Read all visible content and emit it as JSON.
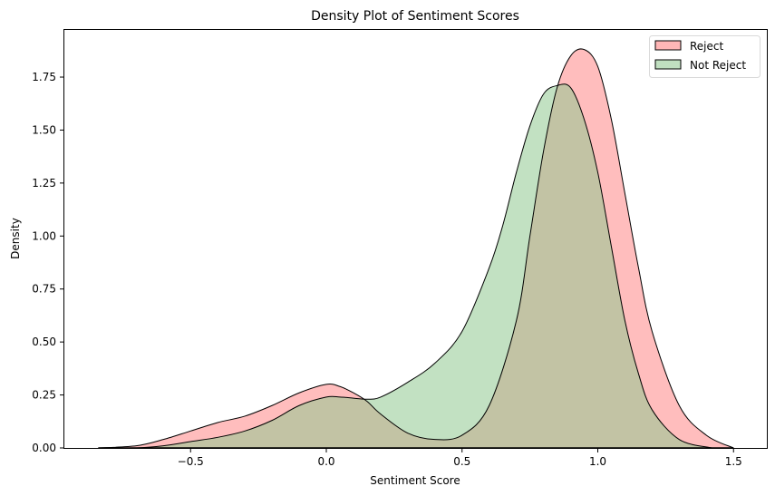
{
  "chart_data": {
    "type": "area",
    "subtype": "kde-density",
    "title": "Density Plot of Sentiment Scores",
    "xlabel": "Sentiment Score",
    "ylabel": "Density",
    "xlim": [
      -0.92,
      1.62
    ],
    "ylim": [
      0,
      1.97
    ],
    "xticks": [
      -0.5,
      0.0,
      0.5,
      1.0,
      1.5
    ],
    "xtick_labels": [
      "−0.5",
      "0.0",
      "0.5",
      "1.0",
      "1.5"
    ],
    "yticks": [
      0.0,
      0.25,
      0.5,
      0.75,
      1.0,
      1.25,
      1.5,
      1.75
    ],
    "ytick_labels": [
      "0.00",
      "0.25",
      "0.50",
      "0.75",
      "1.00",
      "1.25",
      "1.50",
      "1.75"
    ],
    "grid": false,
    "legend_position": "upper right",
    "series": [
      {
        "name": "Reject",
        "color": "#ff9999",
        "fill_opacity": 0.65,
        "x": [
          -0.84,
          -0.7,
          -0.6,
          -0.5,
          -0.4,
          -0.3,
          -0.2,
          -0.1,
          0.0,
          0.05,
          0.1,
          0.15,
          0.2,
          0.3,
          0.4,
          0.5,
          0.6,
          0.7,
          0.75,
          0.8,
          0.85,
          0.9,
          0.95,
          1.0,
          1.05,
          1.1,
          1.15,
          1.2,
          1.3,
          1.4,
          1.5
        ],
        "y": [
          0.0,
          0.01,
          0.04,
          0.08,
          0.12,
          0.15,
          0.2,
          0.26,
          0.3,
          0.29,
          0.26,
          0.22,
          0.16,
          0.07,
          0.04,
          0.06,
          0.2,
          0.6,
          1.0,
          1.4,
          1.7,
          1.85,
          1.88,
          1.8,
          1.55,
          1.2,
          0.85,
          0.55,
          0.2,
          0.06,
          0.0
        ]
      },
      {
        "name": "Not Reject",
        "color": "#8fc88f",
        "fill_opacity": 0.55,
        "x": [
          -0.84,
          -0.7,
          -0.6,
          -0.5,
          -0.4,
          -0.3,
          -0.2,
          -0.1,
          0.0,
          0.05,
          0.1,
          0.15,
          0.2,
          0.3,
          0.4,
          0.5,
          0.6,
          0.65,
          0.7,
          0.75,
          0.8,
          0.85,
          0.9,
          0.95,
          1.0,
          1.05,
          1.1,
          1.15,
          1.2,
          1.3,
          1.42
        ],
        "y": [
          0.0,
          0.0,
          0.01,
          0.03,
          0.05,
          0.08,
          0.13,
          0.2,
          0.24,
          0.24,
          0.235,
          0.23,
          0.24,
          0.31,
          0.4,
          0.55,
          0.85,
          1.05,
          1.3,
          1.52,
          1.67,
          1.71,
          1.7,
          1.55,
          1.3,
          0.95,
          0.6,
          0.35,
          0.18,
          0.04,
          0.0
        ]
      }
    ]
  },
  "legend": {
    "items": [
      {
        "label": "Reject",
        "color": "#ffb6b6"
      },
      {
        "label": "Not Reject",
        "color": "#c0dfc0"
      }
    ]
  }
}
